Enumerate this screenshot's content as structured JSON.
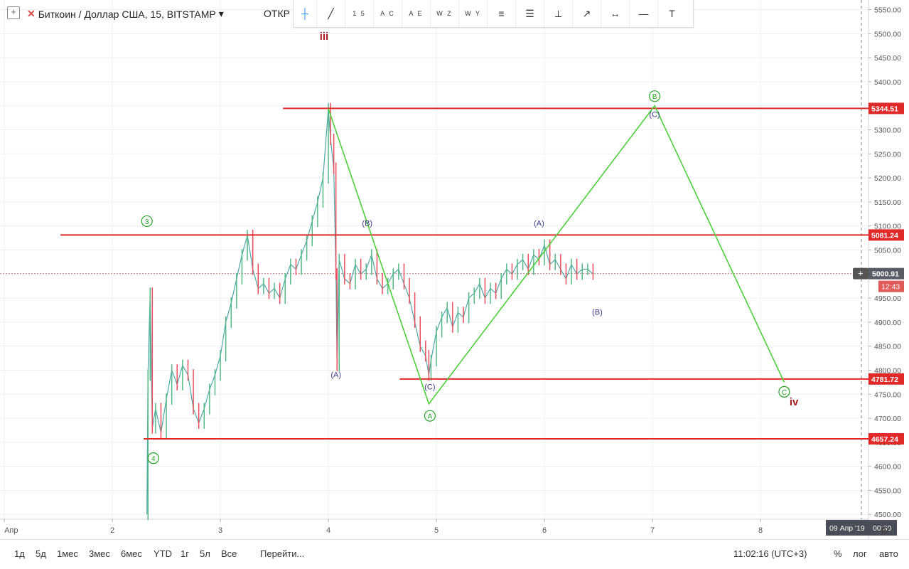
{
  "header": {
    "symbol_title": "Биткоин / Доллар США, 15, BITSTAMP",
    "symbol_caret": "▾",
    "add_symbol": "+",
    "symbol_badge": "✕",
    "ohlc_label": "ОТКР"
  },
  "toolbar": {
    "tools": [
      {
        "name": "crosshair",
        "icon": "crosshair-icon",
        "glyph": "┼"
      },
      {
        "name": "trend-line",
        "icon": "trend-line-icon",
        "glyph": "╱"
      },
      {
        "name": "elliott-impulse",
        "icon": "elliott-impulse-icon",
        "label": "1 5"
      },
      {
        "name": "elliott-correction",
        "icon": "elliott-correction-icon",
        "label": "A C"
      },
      {
        "name": "elliott-triangle",
        "icon": "elliott-triangle-icon",
        "label": "A E"
      },
      {
        "name": "elliott-double-combo",
        "icon": "elliott-double-combo-icon",
        "label": "W Z"
      },
      {
        "name": "elliott-triple-combo",
        "icon": "elliott-triple-combo-icon",
        "label": "W Y"
      },
      {
        "name": "fib-retracement",
        "icon": "fib-retracement-icon",
        "glyph": "≡"
      },
      {
        "name": "parallel-channel",
        "icon": "parallel-channel-icon",
        "glyph": "☰"
      },
      {
        "name": "price-range",
        "icon": "price-range-icon",
        "glyph": "⟂"
      },
      {
        "name": "arrow",
        "icon": "arrow-icon",
        "glyph": "↗"
      },
      {
        "name": "date-range",
        "icon": "date-range-icon",
        "glyph": "↔"
      },
      {
        "name": "horizontal-ray",
        "icon": "horizontal-ray-icon",
        "glyph": "—"
      },
      {
        "name": "text",
        "icon": "text-icon",
        "glyph": "T"
      }
    ]
  },
  "chart_data": {
    "type": "line",
    "symbol": "BTCUSD",
    "interval": "15",
    "y_axis": {
      "ticks": [
        4500,
        4550,
        4600,
        4650,
        4700,
        4750,
        4800,
        4850,
        4900,
        4950,
        5000,
        5050,
        5100,
        5150,
        5200,
        5250,
        5300,
        5350,
        5400,
        5450,
        5500,
        5550
      ],
      "ylim": [
        4490,
        5570
      ]
    },
    "x_axis": {
      "ticks": [
        {
          "label": "Апр",
          "x": 1
        },
        {
          "label": "2",
          "x": 2
        },
        {
          "label": "3",
          "x": 3
        },
        {
          "label": "4",
          "x": 4
        },
        {
          "label": "5",
          "x": 5
        },
        {
          "label": "6",
          "x": 6
        },
        {
          "label": "7",
          "x": 7
        },
        {
          "label": "8",
          "x": 8
        }
      ],
      "xlim": [
        0.96,
        9.0
      ]
    },
    "price_lines": [
      {
        "price": 5344.51,
        "label": "5344.51",
        "x_from": 3.58
      },
      {
        "price": 5081.24,
        "label": "5081.24",
        "x_from": 1.52
      },
      {
        "price": 4781.72,
        "label": "4781.72",
        "x_from": 4.66
      },
      {
        "price": 4657.24,
        "label": "4657.24",
        "x_from": 2.29
      }
    ],
    "last_price": {
      "price": 5000.91,
      "label": "5000.91",
      "countdown": "12:43"
    },
    "crosshair": {
      "x": 8.0,
      "date_label": "09 Апр '19",
      "time_label": "00:30"
    },
    "price_path": [
      [
        2.32,
        4500
      ],
      [
        2.33,
        4790
      ],
      [
        2.35,
        4960
      ],
      [
        2.37,
        4680
      ],
      [
        2.4,
        4720
      ],
      [
        2.45,
        4670
      ],
      [
        2.5,
        4740
      ],
      [
        2.55,
        4800
      ],
      [
        2.6,
        4770
      ],
      [
        2.65,
        4810
      ],
      [
        2.7,
        4790
      ],
      [
        2.75,
        4720
      ],
      [
        2.8,
        4690
      ],
      [
        2.85,
        4720
      ],
      [
        2.9,
        4760
      ],
      [
        2.95,
        4790
      ],
      [
        3.0,
        4830
      ],
      [
        3.05,
        4900
      ],
      [
        3.1,
        4940
      ],
      [
        3.15,
        4990
      ],
      [
        3.2,
        5040
      ],
      [
        3.25,
        5080
      ],
      [
        3.3,
        5010
      ],
      [
        3.35,
        4970
      ],
      [
        3.4,
        4980
      ],
      [
        3.45,
        4960
      ],
      [
        3.5,
        4970
      ],
      [
        3.55,
        4950
      ],
      [
        3.6,
        4990
      ],
      [
        3.65,
        5020
      ],
      [
        3.7,
        5010
      ],
      [
        3.75,
        5040
      ],
      [
        3.8,
        5070
      ],
      [
        3.85,
        5110
      ],
      [
        3.9,
        5150
      ],
      [
        3.95,
        5200
      ],
      [
        4.0,
        5344
      ],
      [
        4.02,
        5280
      ],
      [
        4.05,
        5220
      ],
      [
        4.07,
        5000
      ],
      [
        4.08,
        4810
      ],
      [
        4.1,
        5030
      ],
      [
        4.15,
        4990
      ],
      [
        4.2,
        4980
      ],
      [
        4.25,
        5020
      ],
      [
        4.3,
        5000
      ],
      [
        4.35,
        5010
      ],
      [
        4.4,
        5040
      ],
      [
        4.45,
        4990
      ],
      [
        4.5,
        4970
      ],
      [
        4.55,
        4980
      ],
      [
        4.6,
        5000
      ],
      [
        4.65,
        5010
      ],
      [
        4.7,
        4980
      ],
      [
        4.75,
        4950
      ],
      [
        4.8,
        4900
      ],
      [
        4.85,
        4850
      ],
      [
        4.9,
        4830
      ],
      [
        4.93,
        4790
      ],
      [
        4.95,
        4820
      ],
      [
        5.0,
        4880
      ],
      [
        5.05,
        4910
      ],
      [
        5.1,
        4930
      ],
      [
        5.15,
        4890
      ],
      [
        5.2,
        4920
      ],
      [
        5.25,
        4910
      ],
      [
        5.3,
        4950
      ],
      [
        5.35,
        4960
      ],
      [
        5.4,
        4980
      ],
      [
        5.45,
        4950
      ],
      [
        5.5,
        4970
      ],
      [
        5.55,
        4960
      ],
      [
        5.6,
        4990
      ],
      [
        5.65,
        5010
      ],
      [
        5.7,
        5000
      ],
      [
        5.75,
        5020
      ],
      [
        5.8,
        5030
      ],
      [
        5.85,
        5010
      ],
      [
        5.9,
        5040
      ],
      [
        5.95,
        5030
      ],
      [
        6.0,
        5060
      ],
      [
        6.05,
        5020
      ],
      [
        6.1,
        5030
      ],
      [
        6.15,
        5010
      ],
      [
        6.2,
        4990
      ],
      [
        6.25,
        5020
      ],
      [
        6.3,
        5000
      ],
      [
        6.35,
        5010
      ],
      [
        6.4,
        5010
      ],
      [
        6.45,
        5000
      ]
    ],
    "projection": [
      [
        4.0,
        5344
      ],
      [
        4.93,
        4730
      ],
      [
        7.02,
        5350
      ],
      [
        8.22,
        4775
      ]
    ],
    "projection_color": "#4ccf3a",
    "price_path_color": "#4ea7a9",
    "level_color": "#e02a2a",
    "labels": [
      {
        "text": "iii",
        "x": 3.96,
        "y": 5487,
        "color": "#a31d1d",
        "bold": true,
        "size": 15
      },
      {
        "text": "iv",
        "x": 8.31,
        "y": 4727,
        "color": "#a31d1d",
        "bold": true,
        "size": 15
      },
      {
        "text": "3",
        "x": 2.32,
        "y": 5110,
        "circle": true,
        "color": "#23a323"
      },
      {
        "text": "4",
        "x": 2.38,
        "y": 4617,
        "circle": true,
        "color": "#23a323"
      },
      {
        "text": "A",
        "x": 4.94,
        "y": 4705,
        "circle": true,
        "color": "#23a323"
      },
      {
        "text": "B",
        "x": 7.02,
        "y": 5370,
        "circle": true,
        "color": "#23a323"
      },
      {
        "text": "C",
        "x": 8.22,
        "y": 4755,
        "circle": true,
        "color": "#23a323"
      },
      {
        "text": "(B)",
        "x": 4.36,
        "y": 5100,
        "color": "#3a3a8a"
      },
      {
        "text": "(A)",
        "x": 4.07,
        "y": 4785,
        "color": "#3a3a8a"
      },
      {
        "text": "(C)",
        "x": 4.94,
        "y": 4760,
        "color": "#3a3a8a"
      },
      {
        "text": "(A)",
        "x": 5.95,
        "y": 5100,
        "color": "#3a3a8a"
      },
      {
        "text": "(B)",
        "x": 6.49,
        "y": 4915,
        "color": "#3a3a8a"
      },
      {
        "text": "(C)",
        "x": 7.02,
        "y": 5327,
        "color": "#3a3a8a"
      }
    ],
    "grid": true
  },
  "bottom": {
    "ranges": [
      "1д",
      "5д",
      "1мес",
      "3мес",
      "6мес",
      "YTD",
      "1г",
      "5л",
      "Все"
    ],
    "goto": "Перейти...",
    "clock": "11:02:16 (UTC+3)",
    "percent": "%",
    "log": "лог",
    "auto": "авто"
  }
}
